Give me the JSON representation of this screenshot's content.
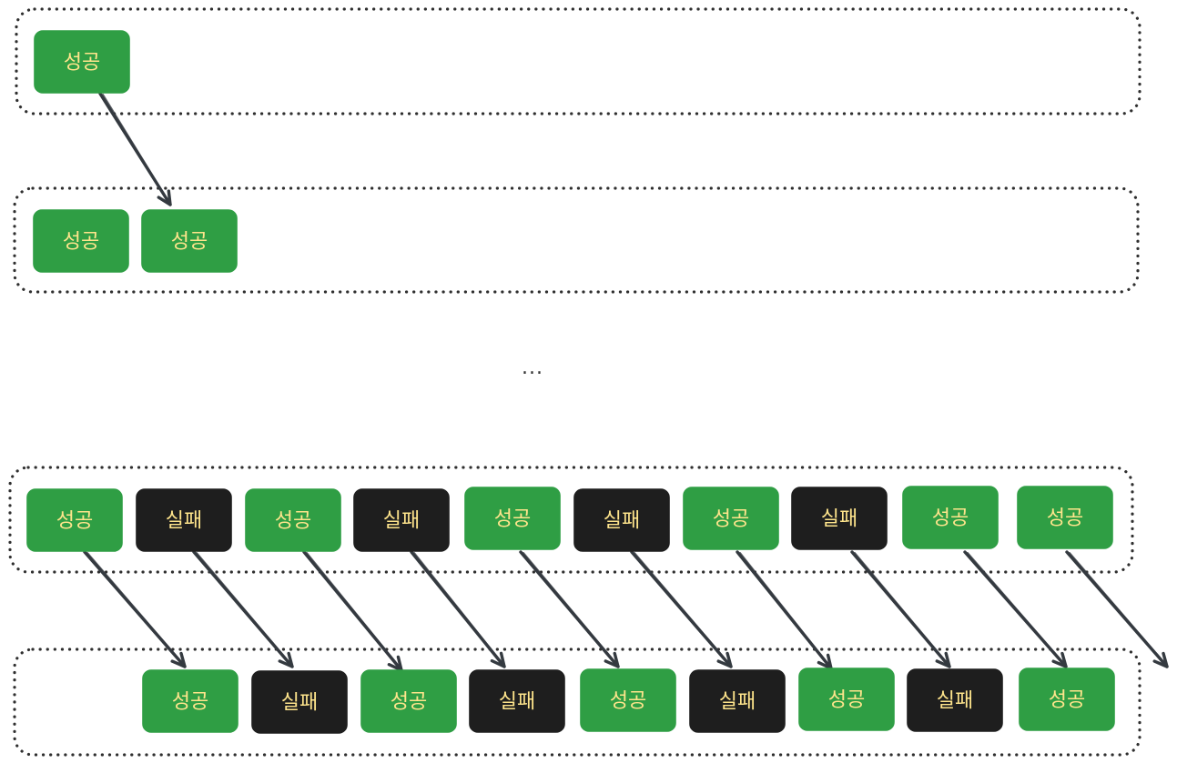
{
  "colors": {
    "success": "#2f9e44",
    "failure": "#1e1e1e",
    "label": "#ffe58c",
    "frame": "#2f2f2f",
    "arrow": "#343a40"
  },
  "ellipsis": "...",
  "rows": [
    {
      "boxes": [
        {
          "label": "성공",
          "kind": "success"
        }
      ]
    },
    {
      "boxes": [
        {
          "label": "성공",
          "kind": "success"
        },
        {
          "label": "성공",
          "kind": "success"
        }
      ]
    },
    {
      "boxes": [
        {
          "label": "성공",
          "kind": "success"
        },
        {
          "label": "실패",
          "kind": "failure"
        },
        {
          "label": "성공",
          "kind": "success"
        },
        {
          "label": "실패",
          "kind": "failure"
        },
        {
          "label": "성공",
          "kind": "success"
        },
        {
          "label": "실패",
          "kind": "failure"
        },
        {
          "label": "성공",
          "kind": "success"
        },
        {
          "label": "실패",
          "kind": "failure"
        },
        {
          "label": "성공",
          "kind": "success"
        },
        {
          "label": "성공",
          "kind": "success"
        }
      ]
    },
    {
      "boxes": [
        {
          "label": "성공",
          "kind": "success"
        },
        {
          "label": "실패",
          "kind": "failure"
        },
        {
          "label": "성공",
          "kind": "success"
        },
        {
          "label": "실패",
          "kind": "failure"
        },
        {
          "label": "성공",
          "kind": "success"
        },
        {
          "label": "실패",
          "kind": "failure"
        },
        {
          "label": "성공",
          "kind": "success"
        },
        {
          "label": "실패",
          "kind": "failure"
        },
        {
          "label": "성공",
          "kind": "success"
        }
      ]
    }
  ]
}
